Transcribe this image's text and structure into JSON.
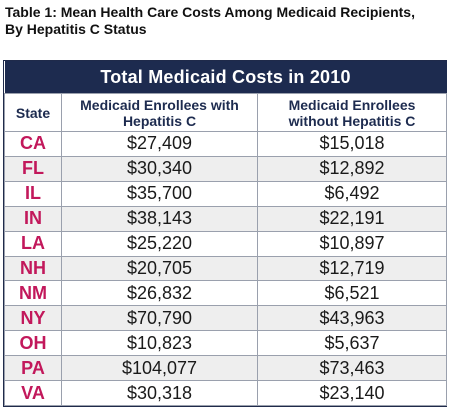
{
  "caption": {
    "line1": "Table 1: Mean Health Care Costs Among Medicaid Recipients,",
    "line2": "By Hepatitis C Status"
  },
  "table": {
    "title": "Total Medicaid Costs in 2010",
    "headers": {
      "state": "State",
      "with_hcv": "Medicaid Enrollees with Hepatitis C",
      "without_hcv": "Medicaid Enrollees without Hepatitis C"
    },
    "rows": [
      {
        "state": "CA",
        "with": "$27,409",
        "without": "$15,018"
      },
      {
        "state": "FL",
        "with": "$30,340",
        "without": "$12,892"
      },
      {
        "state": "IL",
        "with": "$35,700",
        "without": "$6,492"
      },
      {
        "state": "IN",
        "with": "$38,143",
        "without": "$22,191"
      },
      {
        "state": "LA",
        "with": "$25,220",
        "without": "$10,897"
      },
      {
        "state": "NH",
        "with": "$20,705",
        "without": "$12,719"
      },
      {
        "state": "NM",
        "with": "$26,832",
        "without": "$6,521"
      },
      {
        "state": "NY",
        "with": "$70,790",
        "without": "$43,963"
      },
      {
        "state": "OH",
        "with": "$10,823",
        "without": "$5,637"
      },
      {
        "state": "PA",
        "with": "$104,077",
        "without": "$73,463"
      },
      {
        "state": "VA",
        "with": "$30,318",
        "without": "$23,140"
      }
    ]
  },
  "colors": {
    "banner_bg": "#1d2b4f",
    "state_text": "#c2185b",
    "alt_row_bg": "#eeeeee"
  }
}
